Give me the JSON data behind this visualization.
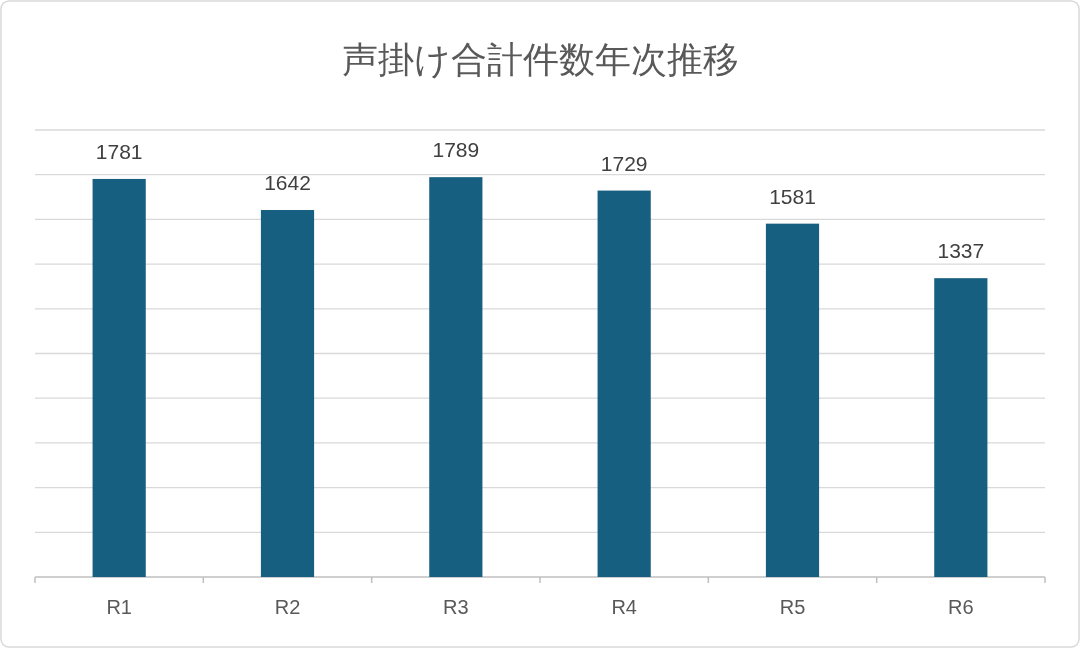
{
  "chart_data": {
    "type": "bar",
    "title": "声掛け合計件数年次推移",
    "categories": [
      "R1",
      "R2",
      "R3",
      "R4",
      "R5",
      "R6"
    ],
    "values": [
      1781,
      1642,
      1789,
      1729,
      1581,
      1337
    ],
    "color": "#175f80",
    "ylim": [
      0,
      2000
    ],
    "yticks": [
      {
        "value": 0,
        "label": null
      },
      {
        "value": 200,
        "label": null
      },
      {
        "value": 400,
        "label": null
      },
      {
        "value": 600,
        "label": null
      },
      {
        "value": 800,
        "label": null
      },
      {
        "value": 1000,
        "label": null
      },
      {
        "value": 1200,
        "label": null
      },
      {
        "value": 1400,
        "label": null
      },
      {
        "value": 1600,
        "label": null
      },
      {
        "value": 1800,
        "label": null
      },
      {
        "value": 2000,
        "label": null
      }
    ],
    "grid": "y",
    "tick_labels": "x",
    "data_labels": true
  }
}
